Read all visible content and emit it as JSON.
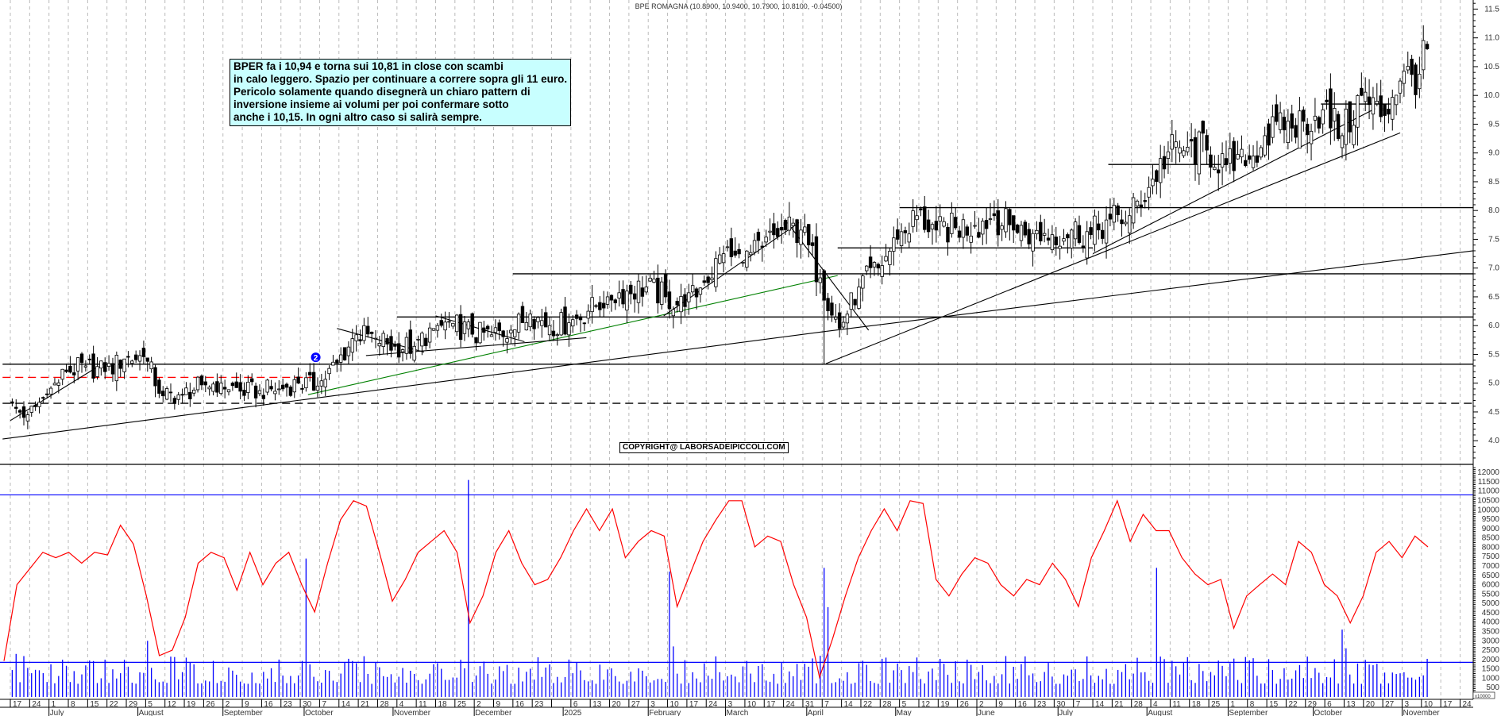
{
  "title": "BPE ROMAGNA (10.8900, 10.9400, 10.7900, 10.8100, -0.04500)",
  "annotation": [
    "BPER fa i 10,94 e torna sui 10,81 in close con scambi",
    "in calo leggero. Spazio per continuare a correre sopra gli 11 euro.",
    "Pericolo solamente quando disegnerà un chiaro pattern di",
    "inversione insieme ai volumi per poi confermare sotto",
    "anche i 10,15. In ogni altro caso si salirà sempre."
  ],
  "copyright": "COPYRIGHT@ LABORSADEIPICCOLI.COM",
  "colors": {
    "up_body": "#ffffff",
    "down_body": "#000000",
    "volume": "#0000ff",
    "oscillator": "#ff0000",
    "trend_green": "#008000",
    "support_red": "#ff0000",
    "note_bg": "#c8ffff",
    "marker": "#0000ff"
  },
  "chart_data": [
    {
      "type": "candlestick",
      "series": "BPE ROMAGNA",
      "last_bar": {
        "open": 10.89,
        "high": 10.94,
        "low": 10.79,
        "close": 10.81,
        "change": -0.045
      },
      "start_week": "2024-06-17",
      "weekly_close": [
        4.45,
        4.8,
        5.2,
        5.3,
        5.2,
        5.42,
        5.46,
        4.78,
        4.8,
        4.97,
        5.0,
        4.86,
        4.87,
        4.9,
        5.0,
        4.95,
        5.35,
        5.84,
        5.78,
        5.64,
        5.64,
        5.95,
        6.04,
        5.85,
        5.84,
        5.92,
        6.2,
        6.0,
        6.05,
        6.25,
        6.5,
        6.6,
        6.67,
        6.5,
        6.33,
        6.75,
        7.25,
        7.1,
        7.36,
        7.66,
        7.66,
        6.83,
        5.95,
        6.67,
        7.0,
        7.5,
        7.91,
        7.66,
        7.7,
        7.74,
        7.91,
        7.66,
        7.6,
        7.58,
        7.66,
        7.58,
        7.85,
        7.91,
        8.4,
        9.02,
        9.1,
        9.05,
        8.8,
        8.78,
        9.3,
        9.4,
        9.55,
        9.75,
        9.3,
        10.0,
        9.63,
        10.25,
        10.37,
        10.81
      ],
      "weekly_low_overrides": [
        {
          "week": "2025-04-07",
          "low": 5.33
        }
      ],
      "y_ticks": [
        "4.0",
        "4.5",
        "5.0",
        "5.5",
        "6.0",
        "6.5",
        "7.0",
        "7.5",
        "8.0",
        "8.5",
        "9.0",
        "9.5",
        "10.0",
        "10.5",
        "11.0",
        "11.5"
      ],
      "ylim": [
        3.6,
        11.66
      ],
      "grid": "vertical dashed weekly",
      "horizontal_lines": [
        {
          "price": 5.33,
          "from": "2024-06-13",
          "to": "end",
          "style": "solid",
          "color": "#000000"
        },
        {
          "price": 4.65,
          "from": "2024-06-13",
          "to": "end",
          "style": "dashed",
          "color": "#000000"
        },
        {
          "price": 5.1,
          "from": "2024-06-13",
          "to": "2024-10-04",
          "style": "dashed",
          "color": "#ff0000"
        },
        {
          "price": 6.15,
          "from": "2024-11-04",
          "to": "end",
          "style": "solid",
          "color": "#000000"
        },
        {
          "price": 6.9,
          "from": "2024-12-16",
          "to": "end",
          "style": "solid",
          "color": "#000000"
        },
        {
          "price": 8.05,
          "from": "2025-05-05",
          "to": "end",
          "style": "solid",
          "color": "#000000"
        },
        {
          "price": 7.35,
          "from": "2025-04-11",
          "to": "2025-07-14",
          "style": "solid",
          "color": "#000000"
        },
        {
          "price": 8.8,
          "from": "2025-07-18",
          "to": "2025-09-01",
          "style": "solid",
          "color": "#000000"
        },
        {
          "price": 9.85,
          "from": "2025-10-03",
          "to": "2025-10-29",
          "style": "solid",
          "color": "#000000"
        }
      ],
      "trendlines": [
        {
          "from": [
            "2024-06-13",
            4.03
          ],
          "to": [
            "2025-04-08",
            5.9
          ],
          "color": "#000000"
        },
        {
          "from": [
            "2025-04-08",
            5.9
          ],
          "to": [
            "2025-11-29",
            7.3
          ],
          "color": "#000000"
        },
        {
          "from": [
            "2024-10-02",
            4.8
          ],
          "to": [
            "2025-04-11",
            6.87
          ],
          "color": "#008000"
        },
        {
          "from": [
            "2025-04-08",
            5.34
          ],
          "to": [
            "2025-11-02",
            9.35
          ],
          "color": "#000000"
        },
        {
          "from": [
            "2025-07-14",
            7.25
          ],
          "to": [
            "2025-10-23",
            9.77
          ],
          "color": "#000000"
        },
        {
          "from": [
            "2025-03-25",
            7.79
          ],
          "to": [
            "2025-04-23",
            5.92
          ],
          "color": "#000000"
        },
        {
          "from": [
            "2025-02-07",
            6.17
          ],
          "to": [
            "2025-03-28",
            7.79
          ],
          "color": "#000000"
        },
        {
          "from": [
            "2024-06-17",
            4.35
          ],
          "to": [
            "2024-07-17",
            5.26
          ],
          "color": "#000000"
        },
        {
          "from": [
            "2024-10-13",
            5.95
          ],
          "to": [
            "2024-11-13",
            5.54
          ],
          "color": "#000000"
        },
        {
          "from": [
            "2024-10-23",
            5.48
          ],
          "to": [
            "2025-01-10",
            5.79
          ],
          "color": "#000000"
        },
        {
          "from": [
            "2024-11-18",
            6.17
          ],
          "to": [
            "2024-12-19",
            5.72
          ],
          "color": "#000000"
        }
      ],
      "markers": [
        {
          "date": "2024-10-04",
          "price": 5.45,
          "label": "2"
        }
      ]
    },
    {
      "type": "bar+line",
      "unit_label": "x10000",
      "y_ticks": [
        "500",
        "1000",
        "1500",
        "2000",
        "2500",
        "3000",
        "3500",
        "4000",
        "4500",
        "5000",
        "5500",
        "6000",
        "6500",
        "7000",
        "7500",
        "8000",
        "8500",
        "9000",
        "9500",
        "10000",
        "10500",
        "11000",
        "11500",
        "12000"
      ],
      "reference_lines": [
        10800,
        1850
      ],
      "volume_typical_range": [
        700,
        2200
      ],
      "volume_spikes": [
        {
          "date": "2024-06-18",
          "value": 2300
        },
        {
          "date": "2024-08-05",
          "value": 3000
        },
        {
          "date": "2024-10-01",
          "value": 7400
        },
        {
          "date": "2024-11-28",
          "value": 11600
        },
        {
          "date": "2025-02-10",
          "value": 6700
        },
        {
          "date": "2025-02-11",
          "value": 2700
        },
        {
          "date": "2025-04-04",
          "value": 2200
        },
        {
          "date": "2025-04-07",
          "value": 6900
        },
        {
          "date": "2025-04-08",
          "value": 4800
        },
        {
          "date": "2025-08-05",
          "value": 6900
        },
        {
          "date": "2025-10-10",
          "value": 3600
        },
        {
          "date": "2025-10-13",
          "value": 2600
        }
      ],
      "oscillator": [
        1920,
        6000,
        6860,
        7730,
        7440,
        7730,
        7150,
        7730,
        7590,
        9180,
        8170,
        5400,
        2210,
        2500,
        4250,
        7150,
        7730,
        7440,
        5700,
        7730,
        6000,
        7150,
        7730,
        6000,
        4540,
        7150,
        9470,
        10490,
        10200,
        7730,
        5120,
        6280,
        7730,
        8310,
        8890,
        7730,
        3960,
        5400,
        7730,
        8890,
        7150,
        6000,
        6280,
        7440,
        8890,
        10050,
        8890,
        10050,
        7440,
        8310,
        8890,
        8600,
        4830,
        6570,
        8310,
        9470,
        10490,
        10490,
        8020,
        8600,
        8310,
        6000,
        4250,
        1050,
        3090,
        5400,
        7440,
        8890,
        10050,
        8890,
        10490,
        10340,
        6280,
        5400,
        6570,
        7440,
        7150,
        6000,
        5400,
        6280,
        6000,
        7150,
        6280,
        4830,
        7440,
        8890,
        10490,
        8310,
        9760,
        8890,
        8890,
        7440,
        6570,
        6000,
        6280,
        3670,
        5400,
        6000,
        6570,
        6000,
        8310,
        7730,
        6000,
        5400,
        3960,
        5400,
        7730,
        8310,
        7440,
        8600,
        8020
      ]
    }
  ],
  "x_axis": {
    "day_labels": [
      "17",
      "24",
      "1",
      "8",
      "15",
      "22",
      "29",
      "5",
      "12",
      "19",
      "26",
      "2",
      "9",
      "16",
      "23",
      "30",
      "7",
      "14",
      "21",
      "28",
      "4",
      "11",
      "18",
      "25",
      "2",
      "9",
      "16",
      "23",
      "",
      "6",
      "13",
      "20",
      "27",
      "3",
      "10",
      "17",
      "24",
      "3",
      "10",
      "17",
      "24",
      "31",
      "7",
      "14",
      "22",
      "28",
      "5",
      "12",
      "19",
      "26",
      "2",
      "9",
      "16",
      "23",
      "30",
      "7",
      "14",
      "21",
      "28",
      "4",
      "11",
      "18",
      "25",
      "1",
      "8",
      "15",
      "22",
      "29",
      "6",
      "13",
      "20",
      "27",
      "3",
      "10",
      "17",
      "24"
    ],
    "months": [
      {
        "label": "July",
        "date": "2024-07-01"
      },
      {
        "label": "August",
        "date": "2024-08-01"
      },
      {
        "label": "September",
        "date": "2024-09-02"
      },
      {
        "label": "October",
        "date": "2024-10-01"
      },
      {
        "label": "November",
        "date": "2024-11-01"
      },
      {
        "label": "December",
        "date": "2024-12-02"
      },
      {
        "label": "2025",
        "date": "2025-01-02"
      },
      {
        "label": "February",
        "date": "2025-02-03"
      },
      {
        "label": "March",
        "date": "2025-03-03"
      },
      {
        "label": "April",
        "date": "2025-04-01"
      },
      {
        "label": "May",
        "date": "2025-05-02"
      },
      {
        "label": "June",
        "date": "2025-06-02"
      },
      {
        "label": "July",
        "date": "2025-07-01"
      },
      {
        "label": "August",
        "date": "2025-08-01"
      },
      {
        "label": "September",
        "date": "2025-09-01"
      },
      {
        "label": "October",
        "date": "2025-10-01"
      },
      {
        "label": "November",
        "date": "2025-11-03"
      }
    ]
  }
}
